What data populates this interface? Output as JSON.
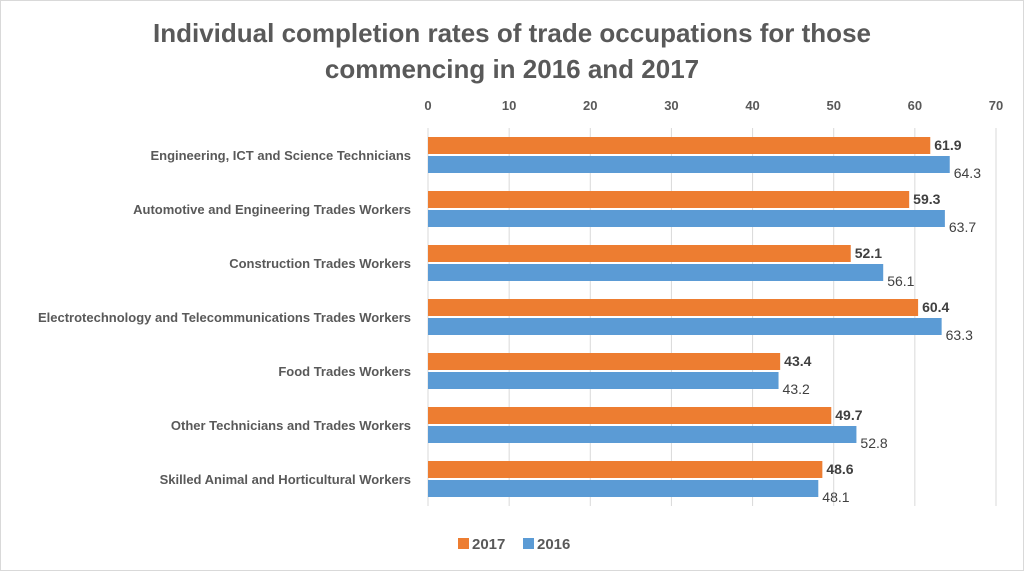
{
  "chart_data": {
    "type": "bar",
    "orientation": "horizontal",
    "title": "Individual completion rates of trade occupations for those commencing in 2016 and 2017",
    "title_lines": [
      "Individual completion rates of trade occupations for those",
      "commencing in 2016 and 2017"
    ],
    "xlim": [
      0,
      70
    ],
    "xticks": [
      0,
      10,
      20,
      30,
      40,
      50,
      60,
      70
    ],
    "xaxis_position": "top",
    "grid": true,
    "legend_position": "bottom",
    "categories": [
      "Engineering, ICT and Science Technicians",
      "Automotive and Engineering Trades Workers",
      "Construction Trades Workers",
      "Electrotechnology and Telecommunications Trades Workers",
      "Food Trades Workers",
      "Other Technicians and Trades Workers",
      "Skilled Animal and Horticultural Workers"
    ],
    "series": [
      {
        "name": "2017",
        "color": "#ED7D31",
        "values": [
          61.9,
          59.3,
          52.1,
          60.4,
          43.4,
          49.7,
          48.6
        ]
      },
      {
        "name": "2016",
        "color": "#5B9BD5",
        "values": [
          64.3,
          63.7,
          56.1,
          63.3,
          43.2,
          52.8,
          48.1
        ]
      }
    ]
  }
}
